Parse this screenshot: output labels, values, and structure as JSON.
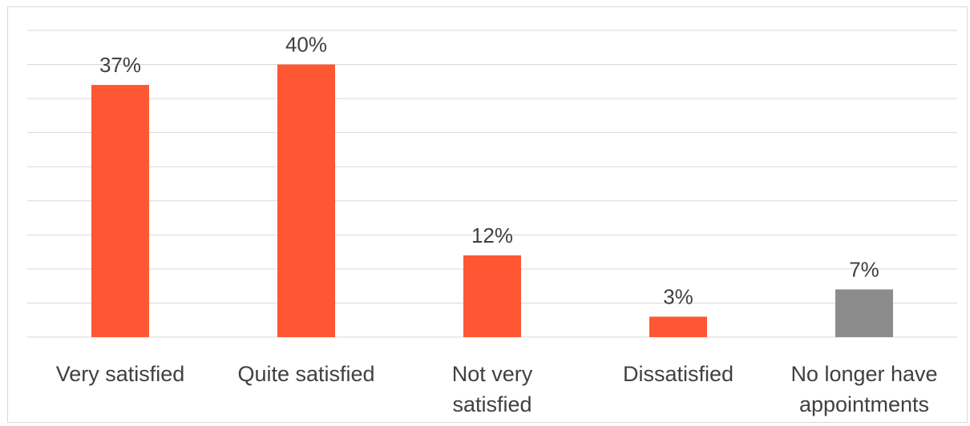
{
  "chart_data": {
    "type": "bar",
    "categories": [
      [
        "Very satisfied"
      ],
      [
        "Quite satisfied"
      ],
      [
        "Not very",
        "satisfied"
      ],
      [
        "Dissatisfied"
      ],
      [
        "No longer have",
        "appointments"
      ]
    ],
    "values": [
      37,
      40,
      12,
      3,
      7
    ],
    "data_labels": [
      "37%",
      "40%",
      "12%",
      "3%",
      "7%"
    ],
    "bar_colors": [
      "#FF5733",
      "#FF5733",
      "#FF5733",
      "#FF5733",
      "#8C8C8C"
    ],
    "ylim": [
      0,
      45
    ],
    "grid_step": 5,
    "grid": true,
    "legend": "none",
    "title": "",
    "xlabel": "",
    "ylabel": ""
  }
}
